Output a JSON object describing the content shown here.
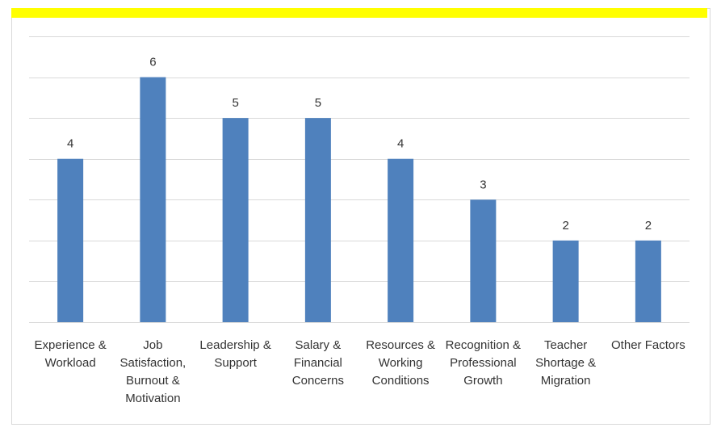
{
  "chart_data": {
    "type": "bar",
    "categories": [
      "Experience & Workload",
      "Job Satisfaction, Burnout & Motivation",
      "Leadership & Support",
      "Salary & Financial Concerns",
      "Resources & Working Conditions",
      "Recognition & Professional Growth",
      "Teacher Shortage & Migration",
      "Other Factors"
    ],
    "values": [
      4,
      6,
      5,
      5,
      4,
      3,
      2,
      2
    ],
    "color": "#4f81bd",
    "ylim": [
      0,
      7
    ],
    "yticks": [
      0,
      1,
      2,
      3,
      4,
      5,
      6,
      7
    ],
    "grid": true
  }
}
